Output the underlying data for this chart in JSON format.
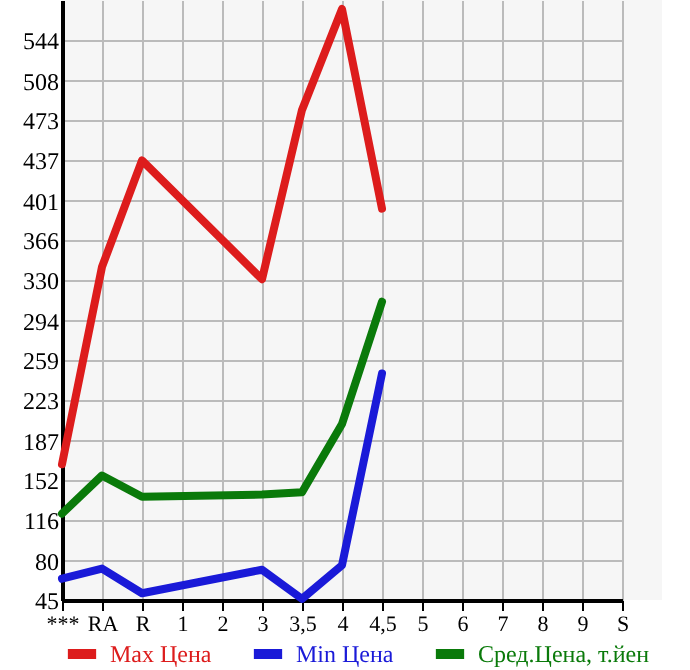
{
  "chart_data": {
    "type": "line",
    "categories": [
      "***",
      "RA",
      "R",
      "1",
      "2",
      "3",
      "3,5",
      "4",
      "4,5",
      "5",
      "6",
      "7",
      "8",
      "9",
      "S"
    ],
    "series": [
      {
        "name": "Max Цена",
        "color": "#dd1c1c",
        "values": [
          166,
          342,
          437,
          null,
          null,
          331,
          482,
          572,
          394,
          null,
          null,
          null,
          null,
          null,
          null
        ]
      },
      {
        "name": "Min Цена",
        "color": "#1a1ad8",
        "values": [
          64,
          73,
          51,
          null,
          null,
          72,
          46,
          76,
          247,
          null,
          null,
          null,
          null,
          null,
          null
        ]
      },
      {
        "name": "Сред.Цена, т.йен",
        "color": "#0a7a0a",
        "values": [
          122,
          156,
          137,
          null,
          null,
          139,
          141,
          202,
          311,
          null,
          null,
          null,
          null,
          null,
          null
        ]
      }
    ],
    "ylim": [
      45,
      580
    ],
    "yticks": [
      45,
      80,
      116,
      152,
      187,
      223,
      259,
      294,
      330,
      366,
      401,
      437,
      473,
      508,
      544
    ],
    "grid": true,
    "legend": "bottom",
    "marker": "none",
    "line_style": "solid"
  }
}
